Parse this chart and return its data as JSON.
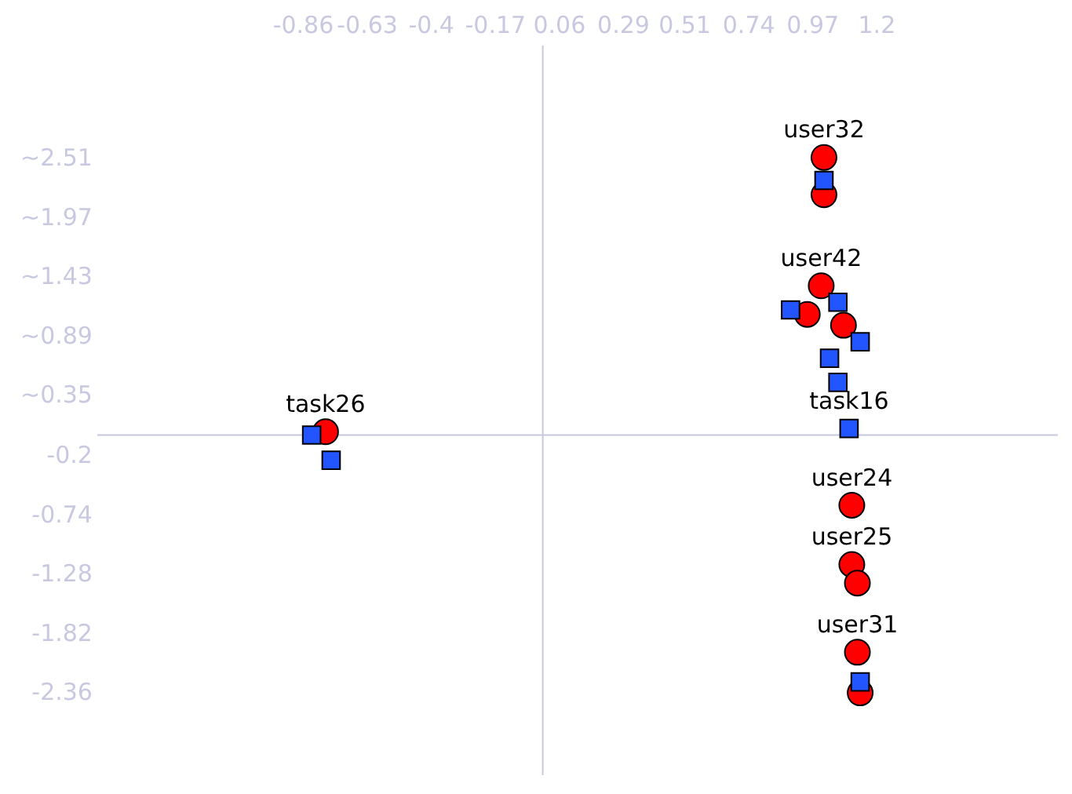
{
  "chart_data": {
    "type": "scatter",
    "xlim": [
      -1.6,
      1.85
    ],
    "xticks": [
      -0.86,
      -0.63,
      -0.4,
      -0.17,
      0.06,
      0.29,
      0.51,
      0.74,
      0.97,
      1.2
    ],
    "ylim": [
      -3.1,
      3.55
    ],
    "yticks": [
      {
        "value": 2.51,
        "label": "~2.51"
      },
      {
        "value": 1.97,
        "label": "~1.97"
      },
      {
        "value": 1.43,
        "label": "~1.43"
      },
      {
        "value": 0.89,
        "label": "~0.89"
      },
      {
        "value": 0.35,
        "label": "~0.35"
      },
      {
        "value": -0.2,
        "label": "-0.2"
      },
      {
        "value": -0.74,
        "label": "-0.74"
      },
      {
        "value": -1.28,
        "label": "-1.28"
      },
      {
        "value": -1.82,
        "label": "-1.82"
      },
      {
        "value": -2.36,
        "label": "-2.36"
      }
    ],
    "grid": false,
    "legend": false,
    "series": [
      {
        "color": "#2255ff",
        "marker": "square",
        "x": [
          -0.83,
          -0.76,
          1.01,
          0.89,
          1.06,
          1.14,
          1.03,
          1.06,
          1.1,
          1.14
        ],
        "values": [
          0.0,
          -0.23,
          2.32,
          1.14,
          1.21,
          0.85,
          0.7,
          0.48,
          0.06,
          -2.25
        ]
      },
      {
        "color": "#ff0000",
        "marker": "circle",
        "x": [
          -0.78,
          1.01,
          1.01,
          1.0,
          1.08,
          0.95,
          1.11,
          1.11,
          1.13,
          1.13,
          1.14
        ],
        "values": [
          0.03,
          2.53,
          2.19,
          1.36,
          1.0,
          1.1,
          -0.64,
          -1.18,
          -1.35,
          -1.98,
          -2.35
        ]
      }
    ],
    "annotations": [
      {
        "text": "task26",
        "x": -0.78,
        "y": 0.03
      },
      {
        "text": "user32",
        "x": 1.01,
        "y": 2.53
      },
      {
        "text": "user42",
        "x": 1.0,
        "y": 1.36
      },
      {
        "text": "task16",
        "x": 1.1,
        "y": 0.06
      },
      {
        "text": "user24",
        "x": 1.11,
        "y": -0.64
      },
      {
        "text": "user25",
        "x": 1.11,
        "y": -1.18
      },
      {
        "text": "user31",
        "x": 1.13,
        "y": -1.98
      }
    ]
  }
}
